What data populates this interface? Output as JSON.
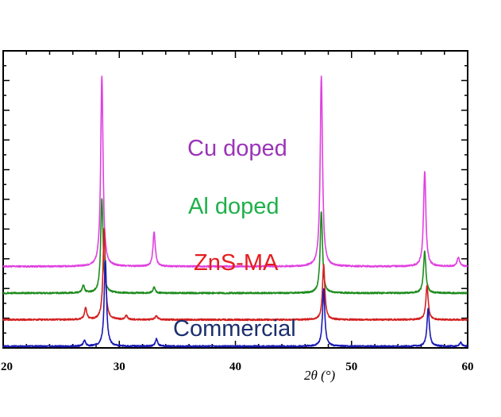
{
  "chart_data": {
    "type": "line",
    "title": "",
    "xlabel": "2θ (°)",
    "ylabel": "",
    "xlim": [
      20,
      60
    ],
    "x_ticks": [
      "20",
      "30",
      "40",
      "50",
      "60"
    ],
    "grid": false,
    "legend": "labels placed directly above each curve",
    "series": [
      {
        "name": "Cu doped",
        "color": "#e040e0",
        "baseline": 0.42,
        "peaks": [
          {
            "x": 28.5,
            "h": 1.0
          },
          {
            "x": 33.0,
            "h": 0.18
          },
          {
            "x": 47.4,
            "h": 1.0
          },
          {
            "x": 56.3,
            "h": 0.5
          },
          {
            "x": 59.2,
            "h": 0.05
          }
        ]
      },
      {
        "name": "Al doped",
        "color": "#1e8c1e",
        "baseline": 0.28,
        "peaks": [
          {
            "x": 26.9,
            "h": 0.04
          },
          {
            "x": 28.5,
            "h": 0.5
          },
          {
            "x": 33.0,
            "h": 0.03
          },
          {
            "x": 47.4,
            "h": 0.43
          },
          {
            "x": 56.3,
            "h": 0.22
          }
        ]
      },
      {
        "name": "ZnS-MA",
        "color": "#d42020",
        "baseline": 0.14,
        "peaks": [
          {
            "x": 27.1,
            "h": 0.06
          },
          {
            "x": 28.7,
            "h": 0.48
          },
          {
            "x": 30.6,
            "h": 0.02
          },
          {
            "x": 33.2,
            "h": 0.02
          },
          {
            "x": 47.6,
            "h": 0.29
          },
          {
            "x": 56.5,
            "h": 0.18
          }
        ]
      },
      {
        "name": "Commercial",
        "color": "#1a1ab4",
        "baseline": 0.0,
        "peaks": [
          {
            "x": 27.0,
            "h": 0.03
          },
          {
            "x": 28.8,
            "h": 0.45
          },
          {
            "x": 33.2,
            "h": 0.04
          },
          {
            "x": 47.6,
            "h": 0.3
          },
          {
            "x": 56.6,
            "h": 0.2
          },
          {
            "x": 59.4,
            "h": 0.02
          }
        ]
      }
    ],
    "series_labels": [
      {
        "text": "Cu doped",
        "color": "#9a34b8"
      },
      {
        "text": "Al doped",
        "color": "#1fb04a"
      },
      {
        "text": "ZnS-MA",
        "color": "#e41e1e"
      },
      {
        "text": "Commercial",
        "color": "#1c2f6e"
      }
    ]
  }
}
